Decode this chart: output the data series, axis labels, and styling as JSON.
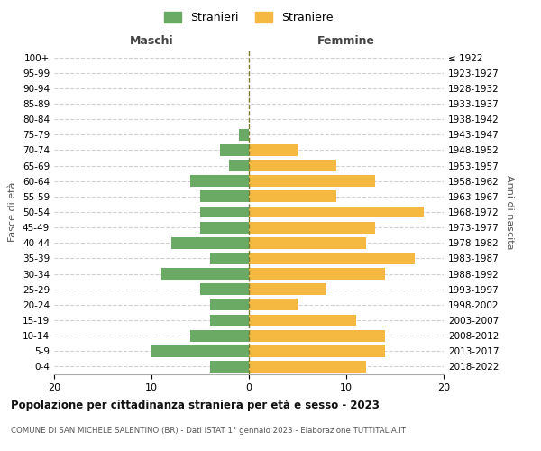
{
  "age_groups": [
    "0-4",
    "5-9",
    "10-14",
    "15-19",
    "20-24",
    "25-29",
    "30-34",
    "35-39",
    "40-44",
    "45-49",
    "50-54",
    "55-59",
    "60-64",
    "65-69",
    "70-74",
    "75-79",
    "80-84",
    "85-89",
    "90-94",
    "95-99",
    "100+"
  ],
  "birth_years": [
    "2018-2022",
    "2013-2017",
    "2008-2012",
    "2003-2007",
    "1998-2002",
    "1993-1997",
    "1988-1992",
    "1983-1987",
    "1978-1982",
    "1973-1977",
    "1968-1972",
    "1963-1967",
    "1958-1962",
    "1953-1957",
    "1948-1952",
    "1943-1947",
    "1938-1942",
    "1933-1937",
    "1928-1932",
    "1923-1927",
    "≤ 1922"
  ],
  "maschi": [
    4,
    10,
    6,
    4,
    4,
    5,
    9,
    4,
    8,
    5,
    5,
    5,
    6,
    2,
    3,
    1,
    0,
    0,
    0,
    0,
    0
  ],
  "femmine": [
    12,
    14,
    14,
    11,
    5,
    8,
    14,
    17,
    12,
    13,
    18,
    9,
    13,
    9,
    5,
    0,
    0,
    0,
    0,
    0,
    0
  ],
  "maschi_color": "#6aaa64",
  "femmine_color": "#f5b942",
  "title": "Popolazione per cittadinanza straniera per età e sesso - 2023",
  "subtitle": "COMUNE DI SAN MICHELE SALENTINO (BR) - Dati ISTAT 1° gennaio 2023 - Elaborazione TUTTITALIA.IT",
  "xlabel_left": "Maschi",
  "xlabel_right": "Femmine",
  "ylabel_left": "Fasce di età",
  "ylabel_right": "Anni di nascita",
  "legend_maschi": "Stranieri",
  "legend_femmine": "Straniere",
  "xlim": 20,
  "background_color": "#ffffff",
  "grid_color": "#cccccc"
}
